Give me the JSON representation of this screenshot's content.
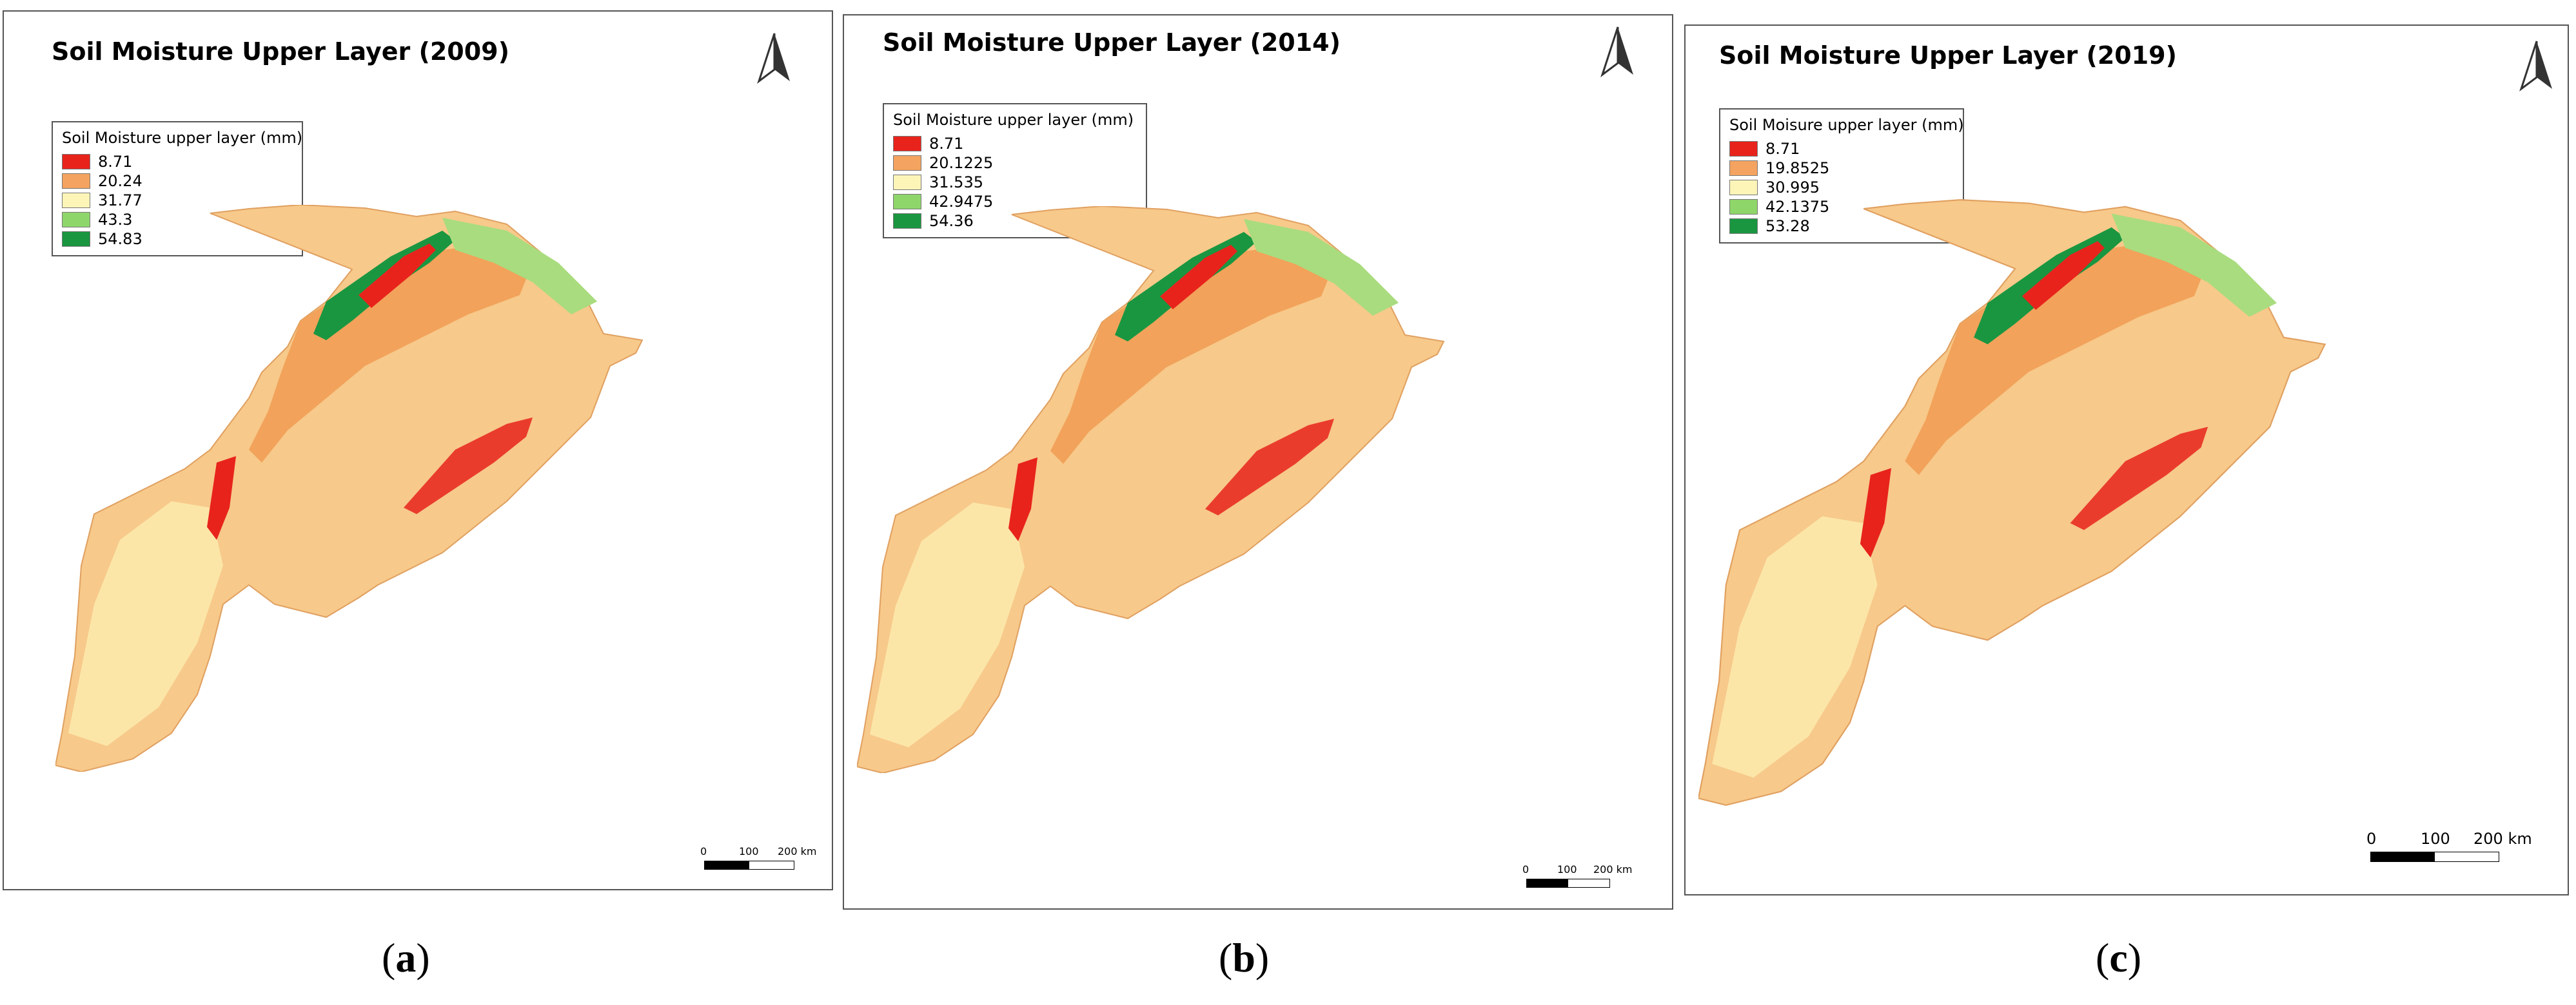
{
  "panels": [
    {
      "title": "Soil Moisture Upper Layer (2009)",
      "legend_title": "Soil Moisture upper layer (mm)",
      "legend": [
        {
          "label": "8.71",
          "color": "#e8231c"
        },
        {
          "label": "20.24",
          "color": "#f4a460"
        },
        {
          "label": "31.77",
          "color": "#fdf5b8"
        },
        {
          "label": "43.3",
          "color": "#8fd66a"
        },
        {
          "label": "54.83",
          "color": "#1a9641"
        }
      ],
      "scale": {
        "t0": "0",
        "t1": "100",
        "t2": "200 km"
      },
      "caption_letter": "a"
    },
    {
      "title": "Soil Moisture Upper Layer (2014)",
      "legend_title": "Soil Moisture upper layer (mm)",
      "legend": [
        {
          "label": "8.71",
          "color": "#e8231c"
        },
        {
          "label": "20.1225",
          "color": "#f4a460"
        },
        {
          "label": "31.535",
          "color": "#fdf5b8"
        },
        {
          "label": "42.9475",
          "color": "#8fd66a"
        },
        {
          "label": "54.36",
          "color": "#1a9641"
        }
      ],
      "scale": {
        "t0": "0",
        "t1": "100",
        "t2": "200 km"
      },
      "caption_letter": "b"
    },
    {
      "title": "Soil Moisture Upper Layer (2019)",
      "legend_title": "Soil Moisure upper layer (mm)",
      "legend": [
        {
          "label": "8.71",
          "color": "#e8231c"
        },
        {
          "label": "19.8525",
          "color": "#f4a460"
        },
        {
          "label": "30.995",
          "color": "#fdf5b8"
        },
        {
          "label": "42.1375",
          "color": "#8fd66a"
        },
        {
          "label": "53.28",
          "color": "#1a9641"
        }
      ],
      "scale": {
        "t0": "0",
        "t1": "100",
        "t2": "200 km"
      },
      "caption_letter": "c"
    }
  ],
  "north_arrow_icon": "north-arrow-icon",
  "caption_paren_open": "(",
  "caption_paren_close": ")"
}
